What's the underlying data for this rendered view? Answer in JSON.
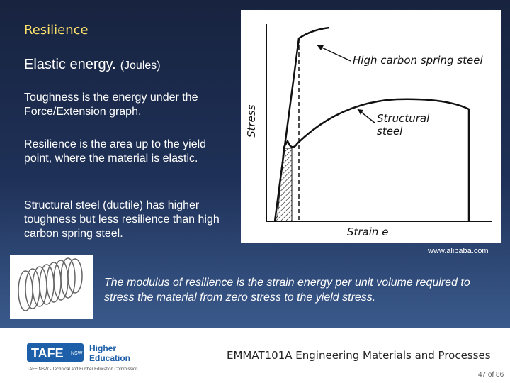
{
  "header": {
    "title": "Resilience"
  },
  "body": {
    "heading": "Elastic energy.",
    "unit": "(Joules)",
    "paragraphs": [
      "Toughness is the energy under the Force/Extension graph.",
      "Resilience is the area up to the yield point, where the material is elastic.",
      "Structural steel (ductile) has higher toughness but less resilience than high carbon spring steel."
    ]
  },
  "figure": {
    "labels": [
      "High carbon spring steel",
      "Structural",
      "steel"
    ],
    "y_label": "Stress",
    "x_label": "Strain e",
    "credit": "www.alibaba.com"
  },
  "caption": "The modulus of resilience is the strain energy per unit volume required to stress the material from zero stress to the yield stress.",
  "footer": {
    "logo": [
      "TAFE",
      "NSW",
      "Higher",
      "Education"
    ],
    "course": "EMMAT101A Engineering Materials and Processes",
    "organisation": "TAFE NSW - Technical and Further Education Commission",
    "page": "47 of 86"
  }
}
